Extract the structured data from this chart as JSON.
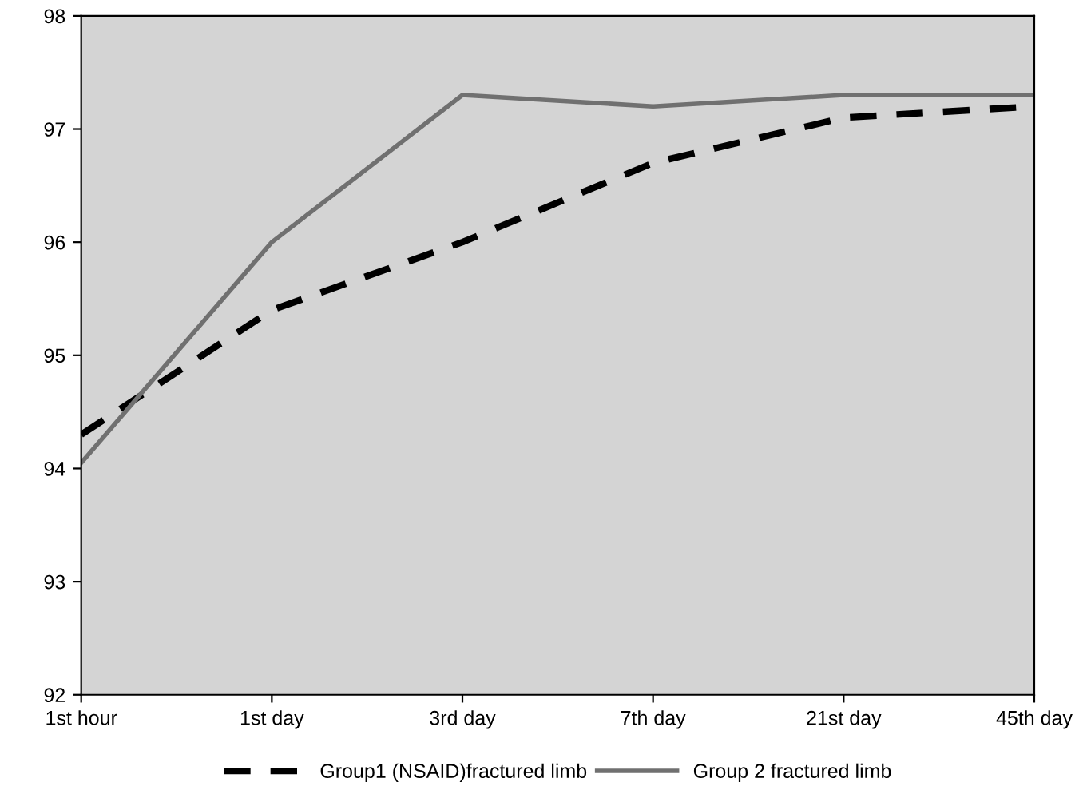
{
  "chart_data": {
    "type": "line",
    "categories": [
      "1st hour",
      "1st day",
      "3rd day",
      "7th day",
      "21st day",
      "45th day"
    ],
    "series": [
      {
        "name": "Group1 (NSAID)fractured limb",
        "color": "#000000",
        "line_style": "dashed",
        "values": [
          94.3,
          95.4,
          96.0,
          96.7,
          97.1,
          97.2
        ]
      },
      {
        "name": "Group 2 fractured limb",
        "color": "#707070",
        "line_style": "solid",
        "values": [
          94.05,
          96.0,
          97.3,
          97.2,
          97.3,
          97.3
        ]
      }
    ],
    "ylim": [
      92,
      98
    ],
    "yticks": [
      92,
      93,
      94,
      95,
      96,
      97,
      98
    ],
    "grid": false,
    "legend": "bottom",
    "marker": "none"
  }
}
